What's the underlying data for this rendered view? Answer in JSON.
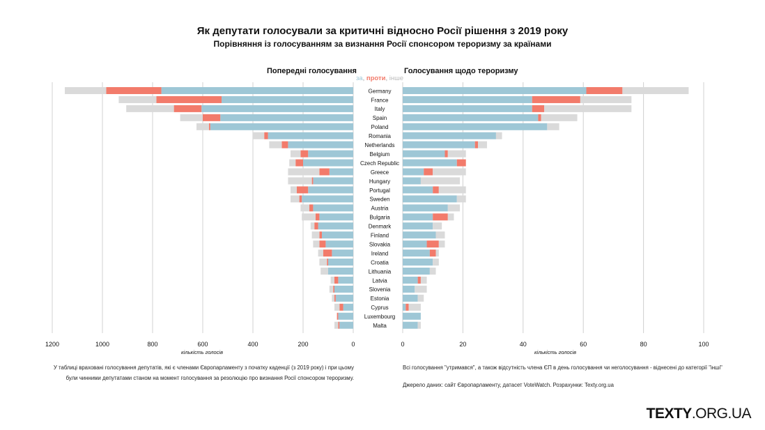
{
  "header": {
    "title": "Як депутати голосували за критичні відносно Росії рішення з 2019 року",
    "subtitle": "Порівняння із голосуванням за визнання Росії спонсором тероризму за країнами"
  },
  "legend": {
    "for": "за",
    "sep1": ", ",
    "against": "проти",
    "sep2": ", ",
    "other": "інше"
  },
  "colors": {
    "for": "#9ec7d6",
    "against": "#f27b6b",
    "other": "#dadada",
    "grid": "#d0d0d0"
  },
  "chart_data": {
    "type": "bar",
    "categories": [
      "Germany",
      "France",
      "Italy",
      "Spain",
      "Poland",
      "Romania",
      "Netherlands",
      "Belgium",
      "Czech Republic",
      "Greece",
      "Hungary",
      "Portugal",
      "Sweden",
      "Austria",
      "Bulgaria",
      "Denmark",
      "Finland",
      "Slovakia",
      "Ireland",
      "Croatia",
      "Lithuania",
      "Latvia",
      "Slovenia",
      "Estonia",
      "Cyprus",
      "Luxembourg",
      "Malta"
    ],
    "panels": [
      {
        "title": "Попередні голосування",
        "direction": "left",
        "xlabel": "кількість голосів",
        "xlim": [
          0,
          1200
        ],
        "ticks": [
          0,
          200,
          400,
          600,
          800,
          1000,
          1200
        ],
        "series": [
          {
            "name": "за",
            "values": [
              765,
              525,
              605,
              530,
              570,
              340,
              260,
              180,
              200,
              95,
              160,
              180,
              205,
              160,
              135,
              140,
              125,
              110,
              85,
              100,
              100,
              60,
              75,
              70,
              40,
              60,
              55
            ]
          },
          {
            "name": "проти",
            "values": [
              220,
              260,
              110,
              70,
              5,
              15,
              25,
              30,
              30,
              40,
              5,
              45,
              10,
              15,
              15,
              15,
              10,
              25,
              35,
              5,
              0,
              15,
              5,
              5,
              15,
              5,
              5
            ]
          },
          {
            "name": "інше",
            "values": [
              165,
              150,
              190,
              90,
              50,
              45,
              50,
              40,
              25,
              125,
              95,
              25,
              35,
              35,
              55,
              15,
              30,
              25,
              20,
              30,
              30,
              15,
              15,
              10,
              20,
              0,
              15
            ]
          }
        ]
      },
      {
        "title": "Голосування щодо тероризму",
        "direction": "right",
        "xlabel": "кількість голосів",
        "xlim": [
          0,
          100
        ],
        "ticks": [
          0,
          20,
          40,
          60,
          80,
          100
        ],
        "series": [
          {
            "name": "за",
            "values": [
              61,
              43,
              43,
              45,
              48,
              31,
              24,
              14,
              18,
              7,
              6,
              10,
              18,
              15,
              10,
              10,
              11,
              8,
              9,
              10,
              9,
              5,
              4,
              5,
              1,
              6,
              5
            ]
          },
          {
            "name": "проти",
            "values": [
              12,
              16,
              4,
              1,
              0,
              0,
              1,
              1,
              3,
              3,
              0,
              2,
              0,
              0,
              5,
              0,
              0,
              4,
              2,
              0,
              0,
              1,
              0,
              0,
              1,
              0,
              0
            ]
          },
          {
            "name": "інше",
            "values": [
              22,
              17,
              29,
              12,
              4,
              2,
              3,
              6,
              0,
              11,
              13,
              9,
              3,
              4,
              2,
              3,
              3,
              2,
              1,
              2,
              2,
              2,
              4,
              2,
              4,
              0,
              1
            ]
          }
        ]
      }
    ]
  },
  "notes": {
    "left": "У таблиці враховані голосування депутатів, які є членами Європарламенту з початку каденції (з 2019 року) і при цьому були чинними депутатами станом на момент голосування за резолюцію про визнання Росії спонсором тероризму.",
    "right1": "Всі голосування \"утримався\", а також відсутність члена ЄП в день голосування чи неголосування - віднесені до категорії \"інші\"",
    "right2": "Джерело даних: сайт Європарламенту, датасет VoteWatch. Розрахунки: Texty.org.ua"
  },
  "brand": {
    "bold": "TEXTY",
    "rest": ".ORG.UA"
  }
}
